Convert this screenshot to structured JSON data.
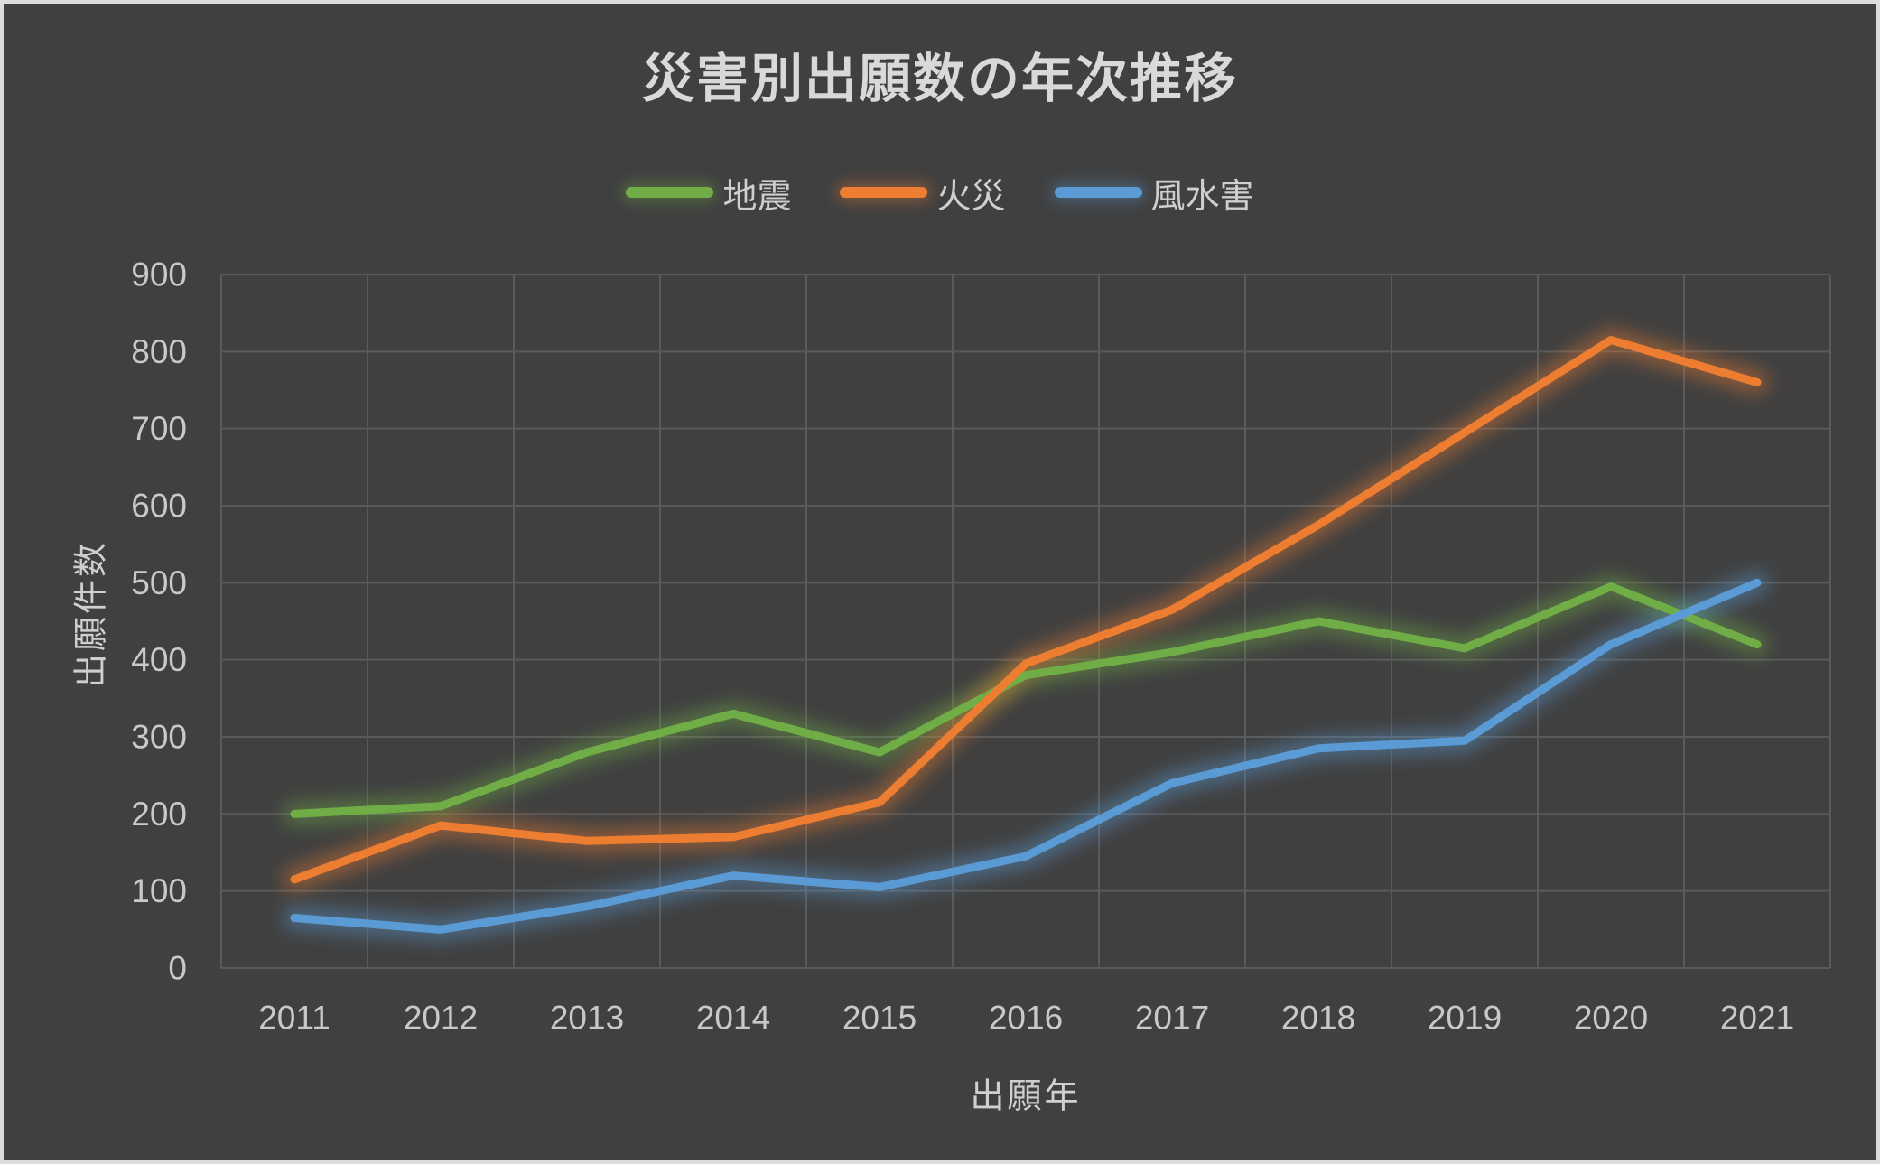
{
  "frame": {
    "background": "#404040",
    "border_color": "#DCDCDC",
    "text_color": "#D9D9D9",
    "grid_color": "#5A5A5A"
  },
  "chart_data": {
    "type": "line",
    "title": "災害別出願数の年次推移",
    "xlabel": "出願年",
    "ylabel": "出願件数",
    "categories": [
      "2011",
      "2012",
      "2013",
      "2014",
      "2015",
      "2016",
      "2017",
      "2018",
      "2019",
      "2020",
      "2021"
    ],
    "series": [
      {
        "name": "地震",
        "color": "#70AD47",
        "values": [
          200,
          210,
          280,
          330,
          280,
          380,
          410,
          450,
          415,
          495,
          420
        ]
      },
      {
        "name": "火災",
        "color": "#ED7D31",
        "values": [
          115,
          185,
          165,
          170,
          215,
          395,
          465,
          575,
          695,
          815,
          760
        ]
      },
      {
        "name": "風水害",
        "color": "#5B9BD5",
        "values": [
          65,
          50,
          80,
          120,
          105,
          145,
          240,
          285,
          295,
          420,
          500
        ]
      }
    ],
    "ylim": [
      0,
      900
    ],
    "y_tick_step": 100,
    "y_tick_labels": [
      "0",
      "100",
      "200",
      "300",
      "400",
      "500",
      "600",
      "700",
      "800",
      "900"
    ],
    "grid": true,
    "legend_position": "top",
    "line_glow": true
  }
}
